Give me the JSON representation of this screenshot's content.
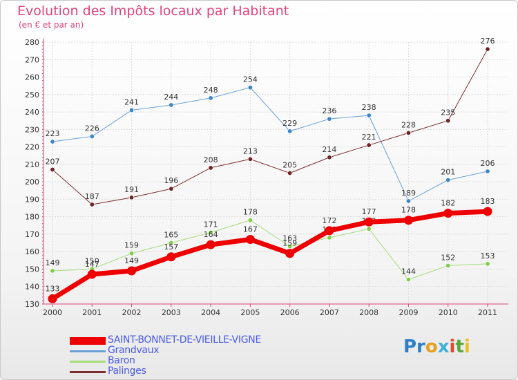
{
  "chart_data": {
    "type": "line",
    "title": "Evolution des Impôts locaux par Habitant",
    "subtitle": "(en € et par an)",
    "xlabel": "",
    "ylabel": "",
    "categories": [
      "2000",
      "2001",
      "2002",
      "2003",
      "2004",
      "2005",
      "2006",
      "2007",
      "2008",
      "2009",
      "2010",
      "2011"
    ],
    "ylim": [
      130,
      280
    ],
    "yticks": [
      "130",
      "140",
      "150",
      "160",
      "170",
      "180",
      "190",
      "200",
      "210",
      "220",
      "230",
      "240",
      "250",
      "260",
      "270",
      "280"
    ],
    "series": [
      {
        "name": "Grandvaux",
        "color": "#6a9fd4",
        "point": "#3d86c6",
        "width": 1,
        "values": [
          223,
          226,
          241,
          244,
          248,
          254,
          229,
          236,
          238,
          189,
          201,
          206
        ]
      },
      {
        "name": "Baron",
        "color": "#a6dd7a",
        "point": "#7fcc45",
        "width": 1,
        "values": [
          149,
          150,
          159,
          165,
          171,
          178,
          163,
          168,
          173,
          144,
          152,
          153
        ]
      },
      {
        "name": "Palinges",
        "color": "#7a2e2e",
        "point": "#6d2424",
        "width": 1,
        "values": [
          207,
          187,
          191,
          196,
          208,
          213,
          205,
          214,
          221,
          228,
          235,
          276
        ]
      },
      {
        "name": "SAINT-BONNET-DE-VIEILLE-VIGNE",
        "color": "#ee0000",
        "point": "#ee0000",
        "width": 7,
        "values": [
          133,
          147,
          149,
          157,
          164,
          167,
          159,
          172,
          177,
          178,
          182,
          183
        ]
      }
    ],
    "legend_order": [
      "SAINT-BONNET-DE-VIEILLE-VIGNE",
      "Grandvaux",
      "Baron",
      "Palinges"
    ],
    "legend_position": "bottom-left"
  },
  "brand": {
    "letters": [
      "Pr",
      "o",
      "x",
      "i",
      "t",
      "i"
    ]
  }
}
